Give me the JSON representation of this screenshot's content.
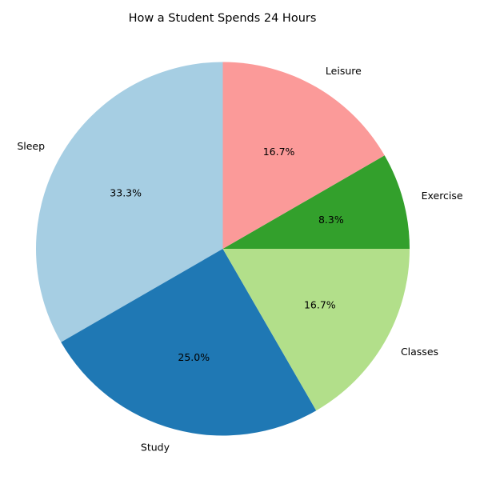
{
  "chart_data": {
    "type": "pie",
    "title": "How a Student Spends 24 Hours",
    "slices": [
      {
        "label": "Sleep",
        "value": 8,
        "percent_label": "33.3%",
        "color": "#a6cee3"
      },
      {
        "label": "Study",
        "value": 6,
        "percent_label": "25.0%",
        "color": "#1f78b4"
      },
      {
        "label": "Classes",
        "value": 4,
        "percent_label": "16.7%",
        "color": "#b2df8a"
      },
      {
        "label": "Exercise",
        "value": 2,
        "percent_label": "8.3%",
        "color": "#33a02c"
      },
      {
        "label": "Leisure",
        "value": 4,
        "percent_label": "16.7%",
        "color": "#fb9a99"
      }
    ],
    "start_angle_deg": 90,
    "direction": "counterclockwise",
    "legend": "none"
  }
}
